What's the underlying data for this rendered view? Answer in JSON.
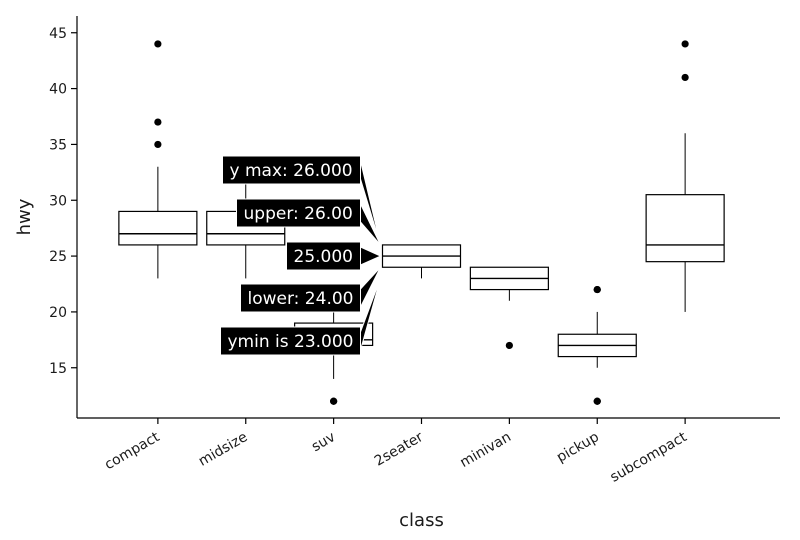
{
  "chart_data": {
    "type": "boxplot",
    "xlabel": "class",
    "ylabel": "hwy",
    "ylim": [
      10.5,
      46.5
    ],
    "yticks": [
      15,
      20,
      25,
      30,
      35,
      40,
      45
    ],
    "categories": [
      "compact",
      "midsize",
      "suv",
      "2seater",
      "minivan",
      "pickup",
      "subcompact"
    ],
    "boxes": [
      {
        "category": "compact",
        "ymin": 23,
        "lower": 26,
        "middle": 27,
        "upper": 29,
        "ymax": 33,
        "outliers": [
          35,
          37,
          44
        ]
      },
      {
        "category": "midsize",
        "ymin": 23,
        "lower": 26,
        "middle": 27,
        "upper": 29,
        "ymax": 32,
        "outliers": []
      },
      {
        "category": "suv",
        "ymin": 14,
        "lower": 17,
        "middle": 17.5,
        "upper": 19,
        "ymax": 22,
        "outliers": [
          12,
          12
        ]
      },
      {
        "category": "2seater",
        "ymin": 23,
        "lower": 24,
        "middle": 25,
        "upper": 26,
        "ymax": 26,
        "outliers": []
      },
      {
        "category": "minivan",
        "ymin": 21,
        "lower": 22,
        "middle": 23,
        "upper": 24,
        "ymax": 24,
        "outliers": [
          17
        ]
      },
      {
        "category": "pickup",
        "ymin": 15,
        "lower": 16,
        "middle": 17,
        "upper": 18,
        "ymax": 20,
        "outliers": [
          12,
          12,
          22,
          22
        ]
      },
      {
        "category": "subcompact",
        "ymin": 20,
        "lower": 24.5,
        "middle": 26,
        "upper": 30.5,
        "ymax": 36,
        "outliers": [
          41,
          44
        ]
      }
    ],
    "tooltip": {
      "target": "2seater",
      "labels": [
        {
          "key": "ymax",
          "text": "y max: 26.000"
        },
        {
          "key": "upper",
          "text": "upper: 26.00"
        },
        {
          "key": "middle",
          "text": "25.000"
        },
        {
          "key": "lower",
          "text": "lower: 24.00"
        },
        {
          "key": "ymin",
          "text": "ymin is 23.000"
        }
      ]
    }
  }
}
